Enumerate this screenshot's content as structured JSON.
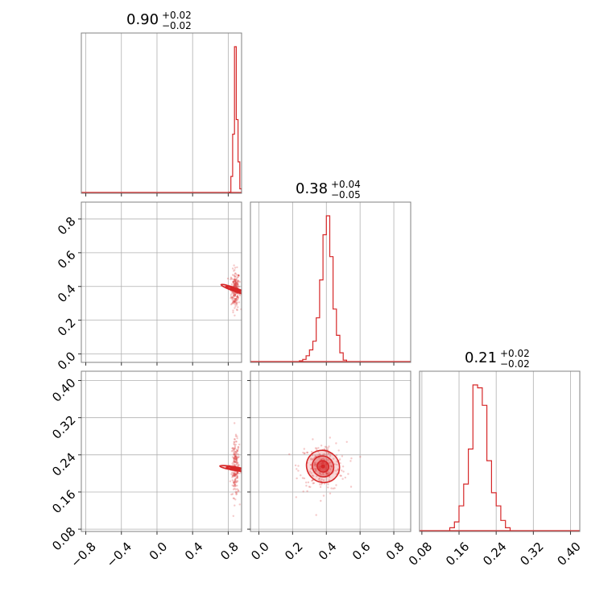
{
  "chart_data": {
    "type": "corner",
    "color": "#d62728",
    "grid": true,
    "parameters": [
      {
        "title": {
          "median": "0.90",
          "plus": "+0.02",
          "minus": "−0.02"
        },
        "range": [
          -0.85,
          0.95
        ],
        "ticks": [
          -0.8,
          -0.4,
          0.0,
          0.4,
          0.8
        ],
        "tick_labels": [
          "−0.8",
          "−0.4",
          "0.0",
          "0.4",
          "0.8"
        ],
        "histogram": {
          "edges": [
            0.81,
            0.83,
            0.85,
            0.87,
            0.89,
            0.91,
            0.93,
            0.95
          ],
          "counts": [
            2,
            110,
            400,
            1000,
            500,
            210,
            25
          ]
        }
      },
      {
        "title": {
          "median": "0.38",
          "plus": "+0.04",
          "minus": "−0.05"
        },
        "range": [
          -0.05,
          0.9
        ],
        "ticks": [
          0.0,
          0.2,
          0.4,
          0.6,
          0.8
        ],
        "tick_labels": [
          "0.0",
          "0.2",
          "0.4",
          "0.6",
          "0.8"
        ],
        "histogram": {
          "edges": [
            0.24,
            0.26,
            0.28,
            0.3,
            0.32,
            0.34,
            0.36,
            0.38,
            0.4,
            0.42,
            0.44,
            0.46,
            0.48,
            0.5,
            0.52
          ],
          "counts": [
            5,
            15,
            40,
            80,
            140,
            300,
            560,
            870,
            1000,
            720,
            360,
            180,
            60,
            10
          ]
        }
      },
      {
        "title": {
          "median": "0.21",
          "plus": "+0.02",
          "minus": "−0.02"
        },
        "range": [
          0.075,
          0.42
        ],
        "ticks": [
          0.08,
          0.16,
          0.24,
          0.32,
          0.4
        ],
        "tick_labels": [
          "0.08",
          "0.16",
          "0.24",
          "0.32",
          "0.40"
        ],
        "histogram": {
          "edges": [
            0.14,
            0.15,
            0.16,
            0.17,
            0.18,
            0.19,
            0.2,
            0.21,
            0.22,
            0.23,
            0.24,
            0.25,
            0.26,
            0.27
          ],
          "counts": [
            20,
            60,
            170,
            320,
            560,
            1000,
            980,
            860,
            480,
            260,
            170,
            70,
            20
          ]
        }
      }
    ],
    "contours": [
      {
        "x": 0,
        "y": 1,
        "center": [
          0.88,
          0.38
        ],
        "levels": [
          [
            0.006,
            0.03
          ],
          [
            0.012,
            0.06
          ],
          [
            0.02,
            0.09
          ]
        ],
        "tilt_deg": -70,
        "scatter_extent": [
          [
            0.83,
            0.95
          ],
          [
            0.2,
            0.49
          ]
        ]
      },
      {
        "x": 0,
        "y": 2,
        "center": [
          0.88,
          0.21
        ],
        "levels": [
          [
            0.006,
            0.01
          ],
          [
            0.012,
            0.02
          ],
          [
            0.02,
            0.034
          ]
        ],
        "tilt_deg": -80,
        "scatter_extent": [
          [
            0.83,
            0.94
          ],
          [
            0.15,
            0.3
          ]
        ]
      },
      {
        "x": 1,
        "y": 2,
        "center": [
          0.38,
          0.215
        ],
        "levels": [
          [
            0.035,
            0.012
          ],
          [
            0.065,
            0.022
          ],
          [
            0.1,
            0.034
          ]
        ],
        "tilt_deg": 35,
        "scatter_extent": [
          [
            0.2,
            0.55
          ],
          [
            0.15,
            0.28
          ]
        ]
      }
    ]
  }
}
